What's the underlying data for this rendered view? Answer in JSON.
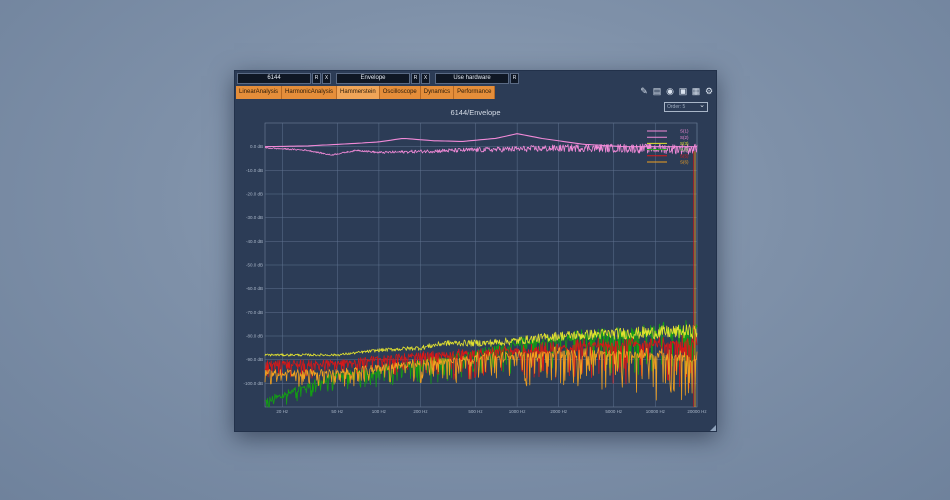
{
  "toolbar": {
    "field1": "6144",
    "field2": "Envelope",
    "field3": "Use hardware",
    "btn_x": "X",
    "btn_r": "R"
  },
  "tabs": [
    {
      "label": "LinearAnalysis"
    },
    {
      "label": "HarmonicAnalysis"
    },
    {
      "label": "Hammerstein"
    },
    {
      "label": "Oscilloscope"
    },
    {
      "label": "Dynamics"
    },
    {
      "label": "Performance"
    }
  ],
  "icons": [
    "notes-icon",
    "book-icon",
    "eye-icon",
    "camera-icon",
    "chart-icon",
    "gear-icon"
  ],
  "dropdown": {
    "value": "Order: 5"
  },
  "plot_title": "6144/Envelope",
  "chart_data": {
    "type": "line",
    "title": "6144/Envelope",
    "x_scale": "log",
    "xlim": [
      15,
      20000
    ],
    "x_ticks": [
      "20 Hz",
      "50 Hz",
      "100 Hz",
      "200 Hz",
      "500 Hz",
      "1000 Hz",
      "2000 Hz",
      "5000 Hz",
      "10000 Hz",
      "20000 Hz"
    ],
    "x_tick_values": [
      20,
      50,
      100,
      200,
      500,
      1000,
      2000,
      5000,
      10000,
      20000
    ],
    "ylim": [
      -110,
      10
    ],
    "y_ticks": [
      "0.0 dB",
      "-10.0 dB",
      "-20.0 dB",
      "-30.0 dB",
      "-40.0 dB",
      "-50.0 dB",
      "-60.0 dB",
      "-70.0 dB",
      "-80.0 dB",
      "-90.0 dB",
      "-100.0 dB"
    ],
    "y_tick_values": [
      0,
      -10,
      -20,
      -30,
      -40,
      -50,
      -60,
      -70,
      -80,
      -90,
      -100
    ],
    "legend_position": "top-right",
    "series": [
      {
        "name": "S(1)",
        "color": "#f28ad8",
        "kind": "smooth",
        "points": [
          [
            15,
            0
          ],
          [
            30,
            0.3
          ],
          [
            60,
            1.2
          ],
          [
            100,
            2
          ],
          [
            150,
            3.5
          ],
          [
            250,
            2.5
          ],
          [
            400,
            2.2
          ],
          [
            700,
            3.5
          ],
          [
            1000,
            5.5
          ],
          [
            1500,
            3.5
          ],
          [
            3000,
            1
          ],
          [
            6000,
            0
          ],
          [
            20000,
            0
          ]
        ]
      },
      {
        "name": "S(2)",
        "color": "#f28ad8",
        "kind": "noisy",
        "points": [
          [
            15,
            -0.5
          ],
          [
            30,
            -1.5
          ],
          [
            45,
            -3.5
          ],
          [
            70,
            -1.5
          ],
          [
            100,
            -2.5
          ],
          [
            200,
            -2
          ],
          [
            400,
            -1.5
          ],
          [
            1000,
            -1
          ],
          [
            3000,
            -0.5
          ],
          [
            20000,
            -1
          ]
        ]
      },
      {
        "name": "S(3)",
        "color": "#e0e030",
        "kind": "noisy",
        "points": [
          [
            15,
            -88
          ],
          [
            50,
            -88
          ],
          [
            100,
            -86
          ],
          [
            200,
            -85
          ],
          [
            300,
            -83
          ],
          [
            600,
            -83
          ],
          [
            1000,
            -82
          ],
          [
            2000,
            -80
          ],
          [
            5000,
            -79
          ],
          [
            20000,
            -78
          ]
        ]
      },
      {
        "name": "S(4)",
        "color": "#12a012",
        "kind": "spiky",
        "points": [
          [
            15,
            -108
          ],
          [
            50,
            -97
          ],
          [
            100,
            -95
          ],
          [
            200,
            -92
          ],
          [
            500,
            -88
          ],
          [
            1000,
            -84
          ],
          [
            2000,
            -82
          ],
          [
            5000,
            -80
          ],
          [
            10000,
            -79
          ],
          [
            20000,
            -78
          ]
        ]
      },
      {
        "name": "S(5)",
        "color": "#d81818",
        "kind": "spiky",
        "points": [
          [
            15,
            -92
          ],
          [
            50,
            -92
          ],
          [
            100,
            -90
          ],
          [
            200,
            -89
          ],
          [
            500,
            -88
          ],
          [
            1000,
            -87
          ],
          [
            2000,
            -86
          ],
          [
            5000,
            -84
          ],
          [
            20000,
            -84
          ]
        ]
      },
      {
        "name": "S(6)",
        "color": "#f0a020",
        "kind": "spiky",
        "points": [
          [
            15,
            -96
          ],
          [
            50,
            -96
          ],
          [
            100,
            -94
          ],
          [
            200,
            -92
          ],
          [
            500,
            -90
          ],
          [
            1000,
            -89
          ],
          [
            2000,
            -88
          ],
          [
            5000,
            -88
          ],
          [
            20000,
            -90
          ]
        ]
      }
    ]
  }
}
